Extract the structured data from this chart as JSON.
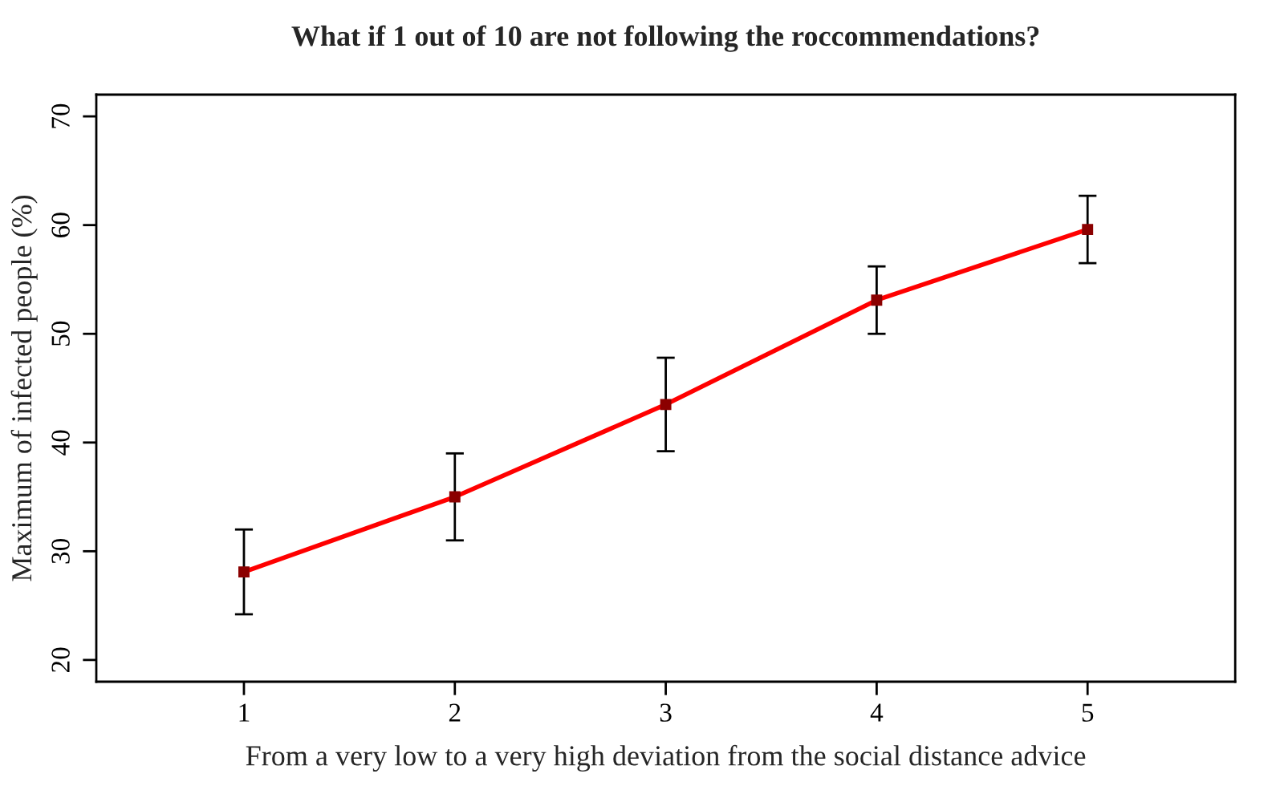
{
  "chart_data": {
    "type": "line",
    "title": "What if 1 out of 10 are not following the roccommendations?",
    "xlabel": "From a very low to a very high deviation from the social distance advice",
    "ylabel": "Maximum of infected people (%)",
    "x": [
      1,
      2,
      3,
      4,
      5
    ],
    "series": [
      {
        "color": "#ff0000",
        "values": [
          28.1,
          35.0,
          43.5,
          53.1,
          59.6
        ],
        "errors": [
          3.9,
          4.0,
          4.3,
          3.1,
          3.1
        ]
      }
    ],
    "xlim": [
      0.3,
      5.7
    ],
    "xticks": [
      1,
      2,
      3,
      4,
      5
    ],
    "ylim": [
      18,
      72
    ],
    "yticks": [
      20,
      30,
      40,
      50,
      60,
      70
    ],
    "grid": false,
    "legend": false,
    "marker": "square",
    "line_style": "solid"
  }
}
